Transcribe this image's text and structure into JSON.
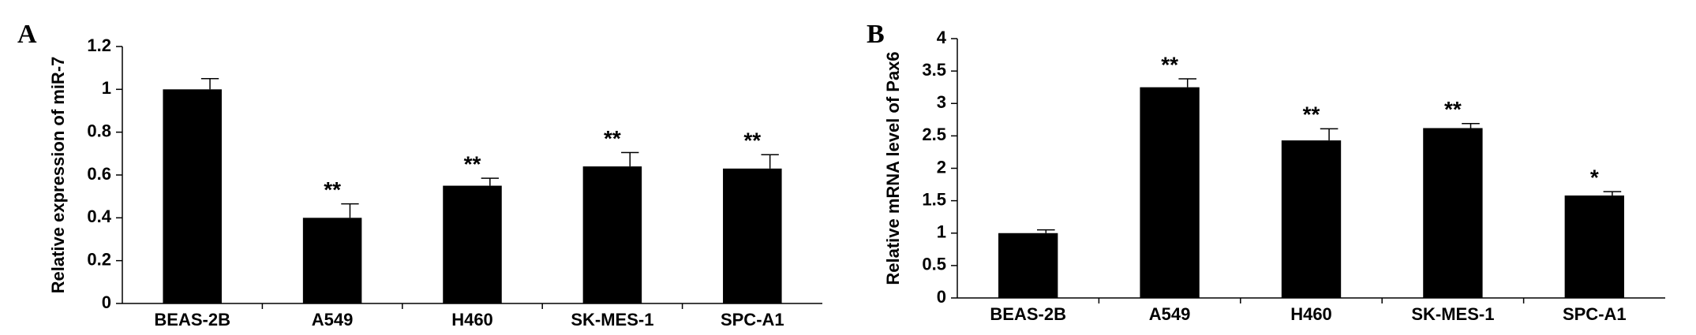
{
  "chart_data": [
    {
      "type": "bar",
      "panel_label": "A",
      "ylabel": "Relative expression of miR-7",
      "categories": [
        "BEAS-2B",
        "A549",
        "H460",
        "SK-MES-1",
        "SPC-A1"
      ],
      "values": [
        1.0,
        0.4,
        0.55,
        0.64,
        0.63
      ],
      "errors": [
        0.05,
        0.065,
        0.035,
        0.065,
        0.065
      ],
      "annotations": [
        null,
        "**",
        "**",
        "**",
        "**"
      ],
      "color": "#000000",
      "ylim": [
        0,
        1.2
      ],
      "yticks": [
        0,
        0.2,
        0.4,
        0.6,
        0.8,
        1,
        1.2
      ]
    },
    {
      "type": "bar",
      "panel_label": "B",
      "ylabel": "Relative mRNA level of Pax6",
      "categories": [
        "BEAS-2B",
        "A549",
        "H460",
        "SK-MES-1",
        "SPC-A1"
      ],
      "values": [
        1.0,
        3.25,
        2.43,
        2.62,
        1.58
      ],
      "errors": [
        0.05,
        0.13,
        0.18,
        0.07,
        0.06
      ],
      "annotations": [
        null,
        "**",
        "**",
        "**",
        "*"
      ],
      "color": "#000000",
      "ylim": [
        0,
        4
      ],
      "yticks": [
        0,
        0.5,
        1,
        1.5,
        2,
        2.5,
        3,
        3.5,
        4
      ]
    }
  ]
}
